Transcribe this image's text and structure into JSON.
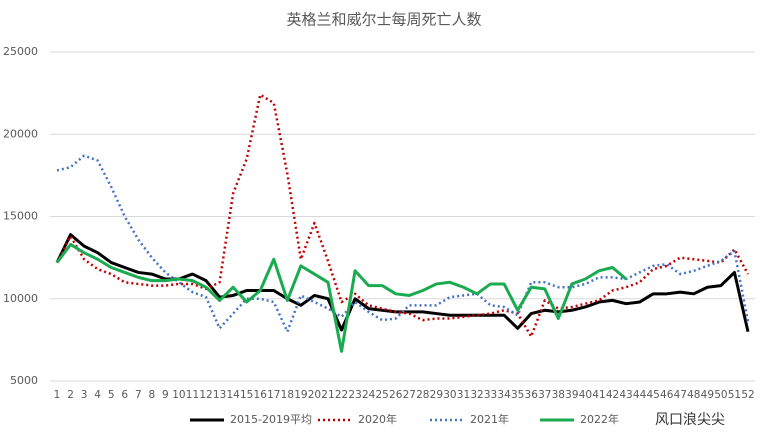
{
  "chart_data": {
    "type": "line",
    "title": "英格兰和威尔士每周死亡人数",
    "categories": [
      1,
      2,
      3,
      4,
      5,
      6,
      7,
      8,
      9,
      10,
      11,
      12,
      13,
      14,
      15,
      16,
      17,
      18,
      19,
      20,
      21,
      22,
      23,
      24,
      25,
      26,
      27,
      28,
      29,
      30,
      31,
      32,
      33,
      34,
      35,
      36,
      37,
      38,
      39,
      40,
      41,
      42,
      43,
      44,
      45,
      46,
      47,
      48,
      49,
      50,
      51,
      52
    ],
    "ylim": [
      5000,
      25000
    ],
    "yticks": [
      5000,
      10000,
      15000,
      20000,
      25000
    ],
    "grid": true,
    "legend": "bottom",
    "series": [
      {
        "name": "2015-2019平均",
        "color": "#000000",
        "style": "solid",
        "width": 3,
        "values": [
          12200,
          13900,
          13200,
          12800,
          12200,
          11900,
          11600,
          11500,
          11200,
          11200,
          11500,
          11100,
          10100,
          10200,
          10500,
          10500,
          10500,
          10000,
          9600,
          10200,
          10000,
          8100,
          10000,
          9400,
          9300,
          9200,
          9200,
          9200,
          9100,
          9000,
          9000,
          9000,
          9000,
          9000,
          8200,
          9100,
          9300,
          9200,
          9300,
          9500,
          9800,
          9900,
          9700,
          9800,
          10300,
          10300,
          10400,
          10300,
          10700,
          10800,
          11600,
          8000
        ]
      },
      {
        "name": "2020年",
        "color": "#c00000",
        "style": "dotted",
        "width": 2.5,
        "values": [
          12200,
          13800,
          12400,
          11800,
          11500,
          11000,
          10900,
          10800,
          10800,
          10900,
          10900,
          10600,
          11000,
          16400,
          18500,
          22400,
          21900,
          17600,
          12400,
          14600,
          12300,
          9800,
          10300,
          9600,
          9400,
          9200,
          9100,
          8700,
          8800,
          8800,
          8900,
          9000,
          9100,
          9300,
          9100,
          7700,
          9900,
          9400,
          9500,
          9700,
          9900,
          10500,
          10700,
          11000,
          11800,
          12000,
          12500,
          12400,
          12300,
          12200,
          13000,
          11500
        ]
      },
      {
        "name": "2021年",
        "color": "#4472c4",
        "style": "dotted",
        "width": 2.5,
        "values": [
          17800,
          18000,
          18700,
          18400,
          16800,
          15000,
          13600,
          12500,
          11600,
          11000,
          10400,
          10100,
          8200,
          9100,
          10000,
          10000,
          9800,
          8000,
          10200,
          9800,
          9400,
          8900,
          9800,
          9200,
          8700,
          8800,
          9600,
          9600,
          9600,
          10100,
          10200,
          10300,
          9600,
          9500,
          9000,
          11000,
          11000,
          10700,
          10700,
          10900,
          11300,
          11300,
          11200,
          11600,
          12000,
          12100,
          11500,
          11700,
          12000,
          12300,
          12900,
          8600
        ]
      },
      {
        "name": "2022年",
        "color": "#1aaa50",
        "style": "solid",
        "width": 3,
        "values": [
          12200,
          13300,
          12800,
          12400,
          11900,
          11600,
          11300,
          11100,
          11100,
          11200,
          11100,
          10700,
          9900,
          10700,
          9800,
          10500,
          12400,
          9900,
          12000,
          11500,
          11000,
          6800,
          11700,
          10800,
          10800,
          10300,
          10200,
          10500,
          10900,
          11000,
          10700,
          10300,
          10900,
          10900,
          9300,
          10700,
          10600,
          8800,
          10900,
          11200,
          11700,
          11900,
          11200,
          null,
          null,
          null,
          null,
          null,
          null,
          null,
          null,
          null
        ]
      }
    ],
    "watermark": "风口浪尖尖"
  }
}
